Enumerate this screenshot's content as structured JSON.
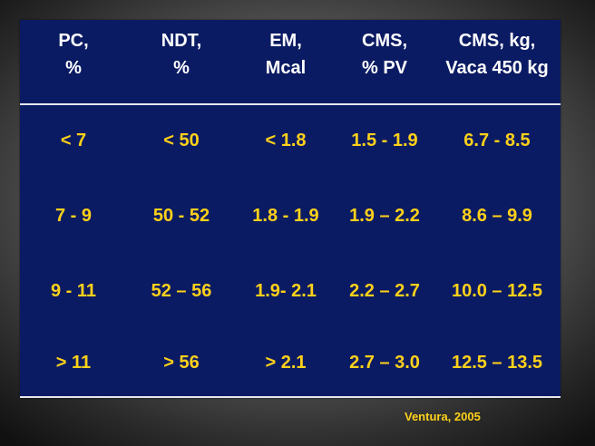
{
  "table": {
    "headers": [
      "PC,\n%",
      "NDT,\n%",
      "EM,\nMcal",
      "CMS,\n% PV",
      "CMS, kg,\nVaca 450 kg"
    ],
    "rows": [
      [
        "< 7",
        "< 50",
        "< 1.8",
        "1.5 - 1.9",
        "6.7 - 8.5"
      ],
      [
        "7 - 9",
        "50 - 52",
        "1.8 - 1.9",
        "1.9 – 2.2",
        "8.6 – 9.9"
      ],
      [
        "9 - 11",
        "52 – 56",
        "1.9- 2.1",
        "2.2 – 2.7",
        "10.0 – 12.5"
      ],
      [
        "> 11",
        "> 56",
        "> 2.1",
        "2.7 – 3.0",
        "12.5 – 13.5"
      ]
    ]
  },
  "citation": "Ventura, 2005",
  "colors": {
    "panel": "#0b1b63",
    "header_text": "#ffffff",
    "value_text": "#ffd11a",
    "rule": "#e6e6f0"
  }
}
